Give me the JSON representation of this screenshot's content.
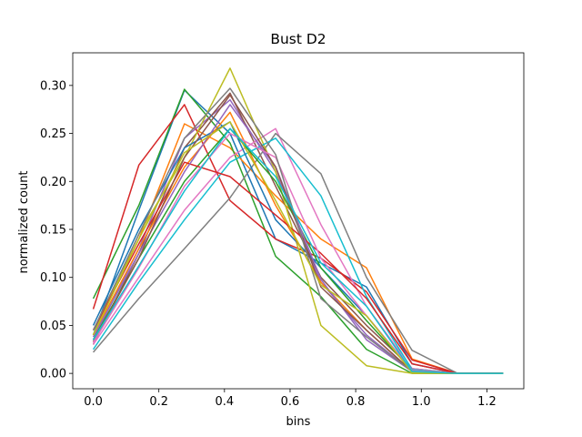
{
  "chart_data": {
    "type": "line",
    "title": "Bust D2",
    "xlabel": "bins",
    "ylabel": "normalized count",
    "xlim": [
      -0.0625,
      1.3125
    ],
    "ylim": [
      -0.016,
      0.334
    ],
    "xticks": [
      0.0,
      0.2,
      0.4,
      0.6,
      0.8,
      1.0,
      1.2
    ],
    "xtick_labels": [
      "0.0",
      "0.2",
      "0.4",
      "0.6",
      "0.8",
      "1.0",
      "1.2"
    ],
    "yticks": [
      0.0,
      0.05,
      0.1,
      0.15,
      0.2,
      0.25,
      0.3
    ],
    "ytick_labels": [
      "0.00",
      "0.05",
      "0.10",
      "0.15",
      "0.20",
      "0.25",
      "0.30"
    ],
    "grid": false,
    "legend": false,
    "x": [
      0.0,
      0.139,
      0.278,
      0.417,
      0.556,
      0.694,
      0.833,
      0.972,
      1.111,
      1.25
    ],
    "series": [
      {
        "color": "#1f77b4",
        "values": [
          0.04,
          0.17,
          0.295,
          0.25,
          0.14,
          0.115,
          0.09,
          0.01,
          0.0,
          0.0
        ]
      },
      {
        "color": "#ff7f0e",
        "values": [
          0.045,
          0.14,
          0.26,
          0.235,
          0.185,
          0.14,
          0.11,
          0.015,
          0.0,
          0.0
        ]
      },
      {
        "color": "#2ca02c",
        "values": [
          0.078,
          0.175,
          0.296,
          0.24,
          0.122,
          0.08,
          0.025,
          0.0,
          0.0,
          0.0
        ]
      },
      {
        "color": "#d62728",
        "values": [
          0.067,
          0.217,
          0.28,
          0.18,
          0.14,
          0.12,
          0.085,
          0.014,
          0.0,
          0.0
        ]
      },
      {
        "color": "#9467bd",
        "values": [
          0.035,
          0.13,
          0.245,
          0.285,
          0.21,
          0.095,
          0.04,
          0.002,
          0.0,
          0.0
        ]
      },
      {
        "color": "#8c564b",
        "values": [
          0.03,
          0.125,
          0.235,
          0.292,
          0.195,
          0.1,
          0.05,
          0.005,
          0.0,
          0.0
        ]
      },
      {
        "color": "#e377c2",
        "values": [
          0.03,
          0.1,
          0.17,
          0.225,
          0.255,
          0.155,
          0.07,
          0.005,
          0.0,
          0.0
        ]
      },
      {
        "color": "#7f7f7f",
        "values": [
          0.022,
          0.078,
          0.13,
          0.183,
          0.25,
          0.208,
          0.1,
          0.024,
          0.0,
          0.0
        ]
      },
      {
        "color": "#bcbd22",
        "values": [
          0.04,
          0.145,
          0.225,
          0.318,
          0.21,
          0.05,
          0.008,
          0.0,
          0.0,
          0.0
        ]
      },
      {
        "color": "#17becf",
        "values": [
          0.025,
          0.095,
          0.16,
          0.22,
          0.245,
          0.185,
          0.08,
          0.004,
          0.0,
          0.0
        ]
      },
      {
        "color": "#1f77b4",
        "values": [
          0.05,
          0.15,
          0.235,
          0.262,
          0.16,
          0.11,
          0.06,
          0.003,
          0.0,
          0.0
        ]
      },
      {
        "color": "#ff7f0e",
        "values": [
          0.04,
          0.13,
          0.215,
          0.272,
          0.175,
          0.095,
          0.045,
          0.002,
          0.0,
          0.0
        ]
      },
      {
        "color": "#2ca02c",
        "values": [
          0.035,
          0.12,
          0.2,
          0.255,
          0.2,
          0.11,
          0.055,
          0.003,
          0.0,
          0.0
        ]
      },
      {
        "color": "#d62728",
        "values": [
          0.045,
          0.135,
          0.22,
          0.205,
          0.165,
          0.125,
          0.078,
          0.01,
          0.0,
          0.0
        ]
      },
      {
        "color": "#9467bd",
        "values": [
          0.038,
          0.125,
          0.21,
          0.28,
          0.215,
          0.098,
          0.035,
          0.002,
          0.0,
          0.0
        ]
      },
      {
        "color": "#8c564b",
        "values": [
          0.033,
          0.12,
          0.225,
          0.29,
          0.215,
          0.09,
          0.045,
          0.002,
          0.0,
          0.0
        ]
      },
      {
        "color": "#e377c2",
        "values": [
          0.032,
          0.11,
          0.195,
          0.25,
          0.225,
          0.12,
          0.06,
          0.003,
          0.0,
          0.0
        ]
      },
      {
        "color": "#7f7f7f",
        "values": [
          0.045,
          0.145,
          0.245,
          0.297,
          0.228,
          0.078,
          0.038,
          0.002,
          0.0,
          0.0
        ]
      },
      {
        "color": "#bcbd22",
        "values": [
          0.04,
          0.14,
          0.23,
          0.262,
          0.18,
          0.092,
          0.06,
          0.001,
          0.0,
          0.0
        ]
      },
      {
        "color": "#17becf",
        "values": [
          0.035,
          0.112,
          0.19,
          0.255,
          0.205,
          0.115,
          0.07,
          0.002,
          0.0,
          0.0
        ]
      }
    ]
  }
}
